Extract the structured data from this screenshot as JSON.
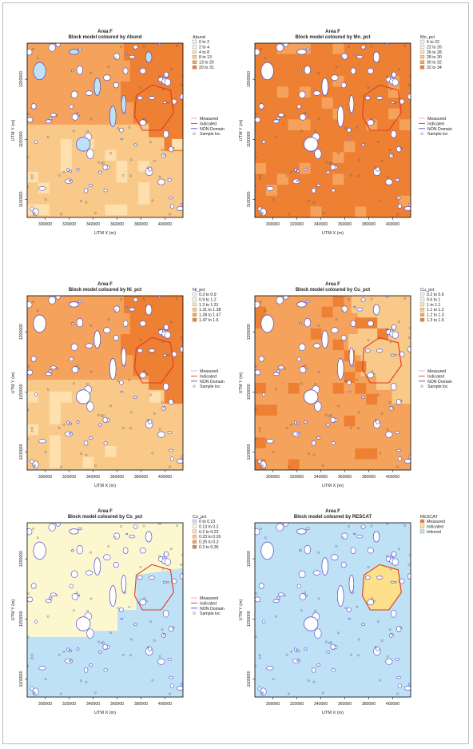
{
  "chart_data": [
    {
      "type": "heatmap",
      "title": "Area F",
      "subtitle": "Block model coloured by Abund",
      "xlabel": "UTM X (m)",
      "ylabel": "UTM Y (m)",
      "xlim": [
        285000,
        415000
      ],
      "ylim": [
        1085000,
        1230000
      ],
      "x_ticks": [
        "300000",
        "320000",
        "340000",
        "360000",
        "380000",
        "400000"
      ],
      "y_ticks": [
        "1100000",
        "1150000",
        "1200000"
      ],
      "legend_title": "Abund",
      "legend_items": [
        {
          "label": "0 to 2",
          "color": "#e3f1fb"
        },
        {
          "label": "2 to 4",
          "color": "#fdf3d2"
        },
        {
          "label": "4 to 8",
          "color": "#fde0ad"
        },
        {
          "label": "8 to 13",
          "color": "#f9c98a"
        },
        {
          "label": "13 to 20",
          "color": "#f5a35c"
        },
        {
          "label": "20 to 31",
          "color": "#ee8033"
        }
      ],
      "overlay_legend": [
        "Measured",
        "Indicated",
        "NON Domain",
        "Sample loc"
      ],
      "zones": [
        {
          "y_from": 1085000,
          "y_to": 1162000,
          "class": "8 to 13"
        },
        {
          "y_from": 1162000,
          "y_to": 1230000,
          "class": "13 to 20"
        },
        {
          "region": "north-east",
          "class": "20 to 31"
        }
      ]
    },
    {
      "type": "heatmap",
      "title": "Area F",
      "subtitle": "Block model coloured by Mn_pct",
      "xlabel": "UTM X (m)",
      "ylabel": "UTM Y (m)",
      "xlim": [
        285000,
        415000
      ],
      "ylim": [
        1085000,
        1230000
      ],
      "x_ticks": [
        "300000",
        "320000",
        "340000",
        "360000",
        "380000",
        "400000"
      ],
      "y_ticks": [
        "1100000",
        "1150000",
        "1200000"
      ],
      "legend_title": "Mn_pct",
      "legend_items": [
        {
          "label": "6 to 22",
          "color": "#e3f1fb"
        },
        {
          "label": "22 to 26",
          "color": "#fdf3d2"
        },
        {
          "label": "26 to 28",
          "color": "#fde0ad"
        },
        {
          "label": "28 to 30",
          "color": "#f9c98a"
        },
        {
          "label": "30 to 32",
          "color": "#f5a35c"
        },
        {
          "label": "32 to 34",
          "color": "#ee8033"
        }
      ],
      "overlay_legend": [
        "Measured",
        "Indicated",
        "NON Domain",
        "Sample loc"
      ],
      "zones": [
        {
          "y_from": 1085000,
          "y_to": 1230000,
          "class": "32 to 34"
        },
        {
          "region": "scattered",
          "class": "30 to 32"
        }
      ]
    },
    {
      "type": "heatmap",
      "title": "Area F",
      "subtitle": "Block model coloured by Ni_pct",
      "xlabel": "UTM X (m)",
      "ylabel": "UTM Y (m)",
      "xlim": [
        285000,
        415000
      ],
      "ylim": [
        1085000,
        1230000
      ],
      "x_ticks": [
        "300000",
        "320000",
        "340000",
        "360000",
        "380000",
        "400000"
      ],
      "y_ticks": [
        "1100000",
        "1150000",
        "1200000"
      ],
      "legend_title": "Ni_pct",
      "legend_items": [
        {
          "label": "0.3 to 0.9",
          "color": "#e3f1fb"
        },
        {
          "label": "0.9 to 1.2",
          "color": "#fdf3d2"
        },
        {
          "label": "1.2 to 1.31",
          "color": "#fde0ad"
        },
        {
          "label": "1.31 to 1.38",
          "color": "#f9c98a"
        },
        {
          "label": "1.38 to 1.47",
          "color": "#f5a35c"
        },
        {
          "label": "1.47 to 1.6",
          "color": "#ee8033"
        }
      ],
      "overlay_legend": [
        "Measured",
        "Indicated",
        "NON Domain",
        "Sample loc"
      ],
      "zones": [
        {
          "y_from": 1085000,
          "y_to": 1160000,
          "class": "1.31 to 1.38"
        },
        {
          "y_from": 1160000,
          "y_to": 1230000,
          "class": "1.38 to 1.47"
        },
        {
          "region": "north-east",
          "class": "1.47 to 1.6"
        }
      ]
    },
    {
      "type": "heatmap",
      "title": "Area F",
      "subtitle": "Block model coloured by Cu_pct",
      "xlabel": "UTM X (m)",
      "ylabel": "UTM Y (m)",
      "xlim": [
        285000,
        415000
      ],
      "ylim": [
        1085000,
        1230000
      ],
      "x_ticks": [
        "300000",
        "320000",
        "340000",
        "360000",
        "380000",
        "400000"
      ],
      "y_ticks": [
        "1100000",
        "1150000",
        "1200000"
      ],
      "legend_title": "Cu_pct",
      "legend_items": [
        {
          "label": "0.2 to 0.6",
          "color": "#e3f1fb"
        },
        {
          "label": "0.6 to 1",
          "color": "#fdf3d2"
        },
        {
          "label": "1 to 1.1",
          "color": "#fde0ad"
        },
        {
          "label": "1.1 to 1.2",
          "color": "#f9c98a"
        },
        {
          "label": "1.2 to 1.3",
          "color": "#f5a35c"
        },
        {
          "label": "1.3 to 1.6",
          "color": "#ee8033"
        }
      ],
      "overlay_legend": [
        "Measured",
        "Indicated",
        "NON Domain",
        "Sample loc"
      ],
      "zones": [
        {
          "y_from": 1085000,
          "y_to": 1230000,
          "class": "1.2 to 1.3"
        },
        {
          "region": "north-east",
          "class": "1.1 to 1.2"
        },
        {
          "region": "scattered",
          "class": "1.3 to 1.6"
        }
      ]
    },
    {
      "type": "heatmap",
      "title": "Area F",
      "subtitle": "Block model coloured by Co_pct",
      "xlabel": "UTM X (m)",
      "ylabel": "UTM Y (m)",
      "xlim": [
        285000,
        415000
      ],
      "ylim": [
        1085000,
        1230000
      ],
      "x_ticks": [
        "300000",
        "320000",
        "340000",
        "360000",
        "380000",
        "400000"
      ],
      "y_ticks": [
        "1100000",
        "1150000",
        "1200000"
      ],
      "legend_title": "Co_pct",
      "legend_items": [
        {
          "label": "0 to 0.13",
          "color": "#bfe1f6"
        },
        {
          "label": "0.13 to 0.2",
          "color": "#fdf7d0"
        },
        {
          "label": "0.2 to 0.23",
          "color": "#fde0ad"
        },
        {
          "label": "0.23 to 0.26",
          "color": "#f9c98a"
        },
        {
          "label": "0.26 to 0.3",
          "color": "#f5a35c"
        },
        {
          "label": "0.3 to 0.36",
          "color": "#ee8033"
        }
      ],
      "overlay_legend": [
        "Measured",
        "Indicated",
        "NON Domain",
        "Sample loc"
      ],
      "zones": [
        {
          "y_from": 1135000,
          "y_to": 1230000,
          "class": "0.13 to 0.2"
        },
        {
          "y_from": 1085000,
          "y_to": 1135000,
          "class": "0 to 0.13"
        },
        {
          "region": "north-east",
          "class": "0 to 0.13"
        }
      ]
    },
    {
      "type": "heatmap",
      "title": "Area F",
      "subtitle": "Block model coloured by RESCAT",
      "xlabel": "UTM X (m)",
      "ylabel": "UTM Y (m)",
      "xlim": [
        285000,
        415000
      ],
      "ylim": [
        1085000,
        1230000
      ],
      "x_ticks": [
        "300000",
        "320000",
        "340000",
        "360000",
        "380000",
        "400000"
      ],
      "y_ticks": [
        "1100000",
        "1150000",
        "1200000"
      ],
      "legend_title": "RESCAT",
      "legend_items": [
        {
          "label": "Measured",
          "color": "#ee8033"
        },
        {
          "label": "Indicated",
          "color": "#fde08a"
        },
        {
          "label": "Inferred",
          "color": "#bfe1f6"
        }
      ],
      "overlay_legend": [],
      "zones": [
        {
          "y_from": 1085000,
          "y_to": 1230000,
          "class": "Inferred"
        },
        {
          "region": "north-east",
          "class": "Indicated"
        }
      ]
    }
  ],
  "colors": {
    "axis": "#000000",
    "domain_outline": "#4b4bc8",
    "indicated_outline": "#e03a1e",
    "measured_line": "#f4a0c0",
    "sample_point": "#555555"
  }
}
